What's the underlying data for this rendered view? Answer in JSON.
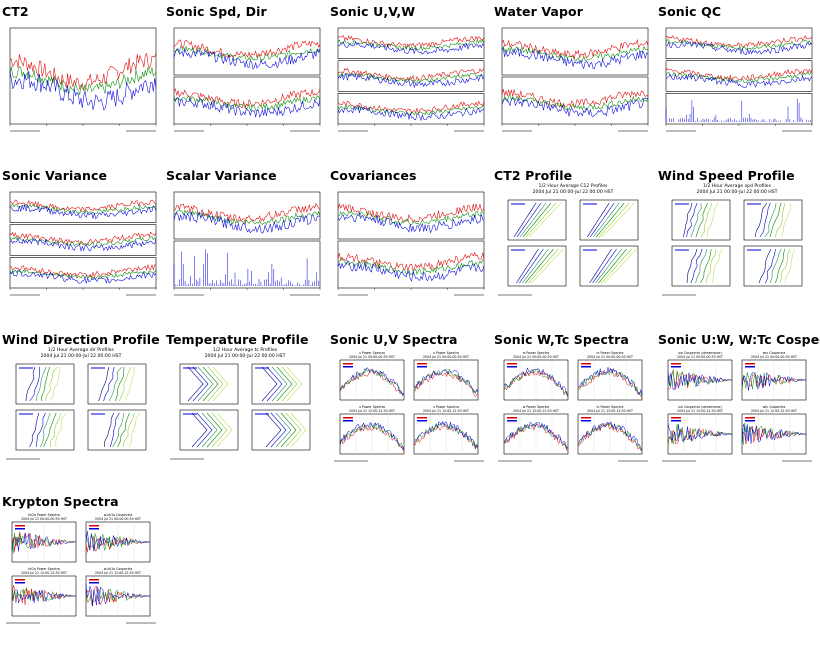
{
  "gallery": [
    {
      "title": "CT2"
    },
    {
      "title": "Sonic Spd, Dir"
    },
    {
      "title": "Sonic U,V,W"
    },
    {
      "title": "Water Vapor"
    },
    {
      "title": "Sonic QC"
    },
    {
      "title": "Sonic Variance"
    },
    {
      "title": "Scalar Variance"
    },
    {
      "title": "Covariances"
    },
    {
      "title": "CT2 Profile"
    },
    {
      "title": "Wind Speed Profile"
    },
    {
      "title": "Wind Direction Profile"
    },
    {
      "title": "Temperature Profile"
    },
    {
      "title": "Sonic U,V Spectra"
    },
    {
      "title": "Sonic W,Tc Spectra"
    },
    {
      "title": "Sonic U:W, W:Tc Cospectra"
    },
    {
      "title": "Krypton Spectra"
    }
  ],
  "profiles": {
    "ct2": {
      "line1": "1/2 Hour Average C12 Profiles",
      "line2": "2004 Jul 21 00:00-Jul 22 00:00 HST"
    },
    "spd": {
      "line1": "1/2 Hour Average spd Profiles",
      "line2": "2004 Jul 21 00:00-Jul 22 00:00 HST"
    },
    "dir": {
      "line1": "1/2 Hour Average dir Profiles",
      "line2": "2004 Jul 21 00:00-Jul 22 00:00 HST"
    },
    "tc": {
      "line1": "1/2 Hour Average tc Profiles",
      "line2": "2004 Jul 21 00:00-Jul 22 00:00 HST"
    }
  },
  "spectra": {
    "uv": [
      {
        "l1": "u Power Spectra",
        "l2": "2004 Jul 21 00:00-00:30 HST"
      },
      {
        "l1": "v Power Spectra",
        "l2": "2004 Jul 21 00:00-00:30 HST"
      },
      {
        "l1": "u Power Spectra",
        "l2": "2004 Jul 21 12:00-12:30 HST"
      },
      {
        "l1": "v Power Spectra",
        "l2": "2004 Jul 21 12:00-12:30 HST"
      }
    ],
    "wtc": [
      {
        "l1": "w Power Spectra",
        "l2": "2004 Jul 21 00:00-00:30 HST"
      },
      {
        "l1": "tc Power Spectra",
        "l2": "2004 Jul 21 00:00-00:30 HST"
      },
      {
        "l1": "w Power Spectra",
        "l2": "2004 Jul 21 12:00-12:30 HST"
      },
      {
        "l1": "tc Power Spectra",
        "l2": "2004 Jul 21 12:00-12:30 HST"
      }
    ],
    "cosp": [
      {
        "l1": "uw Cospectra (streamwise)",
        "l2": "2004 Jul 21 00:00-00:30 HST"
      },
      {
        "l1": "wtc Cospectra",
        "l2": "2004 Jul 21 00:00-00:30 HST"
      },
      {
        "l1": "uw Cospectra (streamwise)",
        "l2": "2004 Jul 21 12:00-12:30 HST"
      },
      {
        "l1": "wtc Cospectra",
        "l2": "2004 Jul 21 12:00-12:30 HST"
      }
    ],
    "kh": [
      {
        "l1": "kh2o Power Spectra",
        "l2": "2004 Jul 21 00:00-00:30 HST"
      },
      {
        "l1": "w,kh2o Cospectra",
        "l2": "2004 Jul 21 00:00-00:30 HST"
      },
      {
        "l1": "kh2o Power Spectra",
        "l2": "2004 Jul 21 12:00-12:30 HST"
      },
      {
        "l1": "w,kh2o Cospectra",
        "l2": "2004 Jul 21 12:00-12:30 HST"
      }
    ]
  },
  "colors": {
    "red": "#e00000",
    "green": "#008a00",
    "blue": "#0000e0",
    "lime": "#9acd32",
    "navy": "#000080"
  }
}
